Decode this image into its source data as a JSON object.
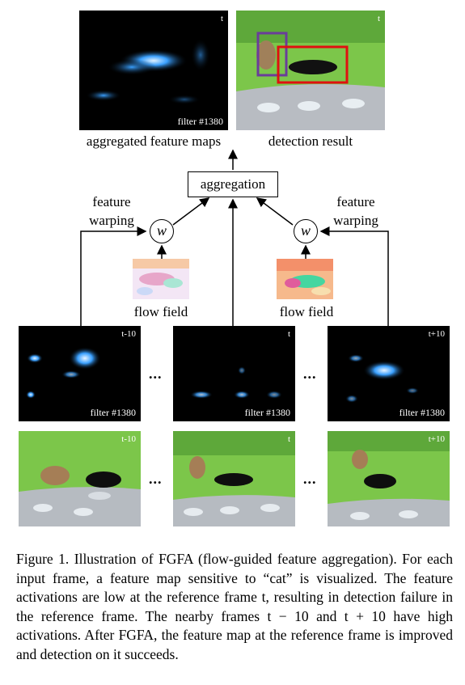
{
  "top": {
    "feature_map_time": "t",
    "feature_map_filter": "filter #1380",
    "feature_map_caption": "aggregated feature maps",
    "detection_time": "t",
    "detection_caption": "detection result"
  },
  "aggregation_label": "aggregation",
  "warp_symbol": "w",
  "left_warping_label_line1": "feature",
  "left_warping_label_line2": "warping",
  "right_warping_label_line1": "feature",
  "right_warping_label_line2": "warping",
  "flow_field_label": "flow field",
  "frames": [
    {
      "time": "t-10",
      "filter": "filter #1380"
    },
    {
      "time": "t",
      "filter": "filter #1380"
    },
    {
      "time": "t+10",
      "filter": "filter #1380"
    }
  ],
  "ellipsis": "...",
  "caption": "Figure 1. Illustration of FGFA (flow-guided feature aggregation). For each input frame, a feature map sensitive to “cat” is visualized. The feature activations are low at the reference frame t, resulting in detection failure in the reference frame. The nearby frames t − 10 and t + 10 have high activations. After FGFA, the feature map at the reference frame is improved and detection on it succeeds.",
  "colors": {
    "feature_bg": "#000000",
    "feature_glow": "#3aa0ff",
    "grass": "#6fbf3a",
    "box_purple": "#6a3d9a",
    "box_red": "#e01010"
  }
}
